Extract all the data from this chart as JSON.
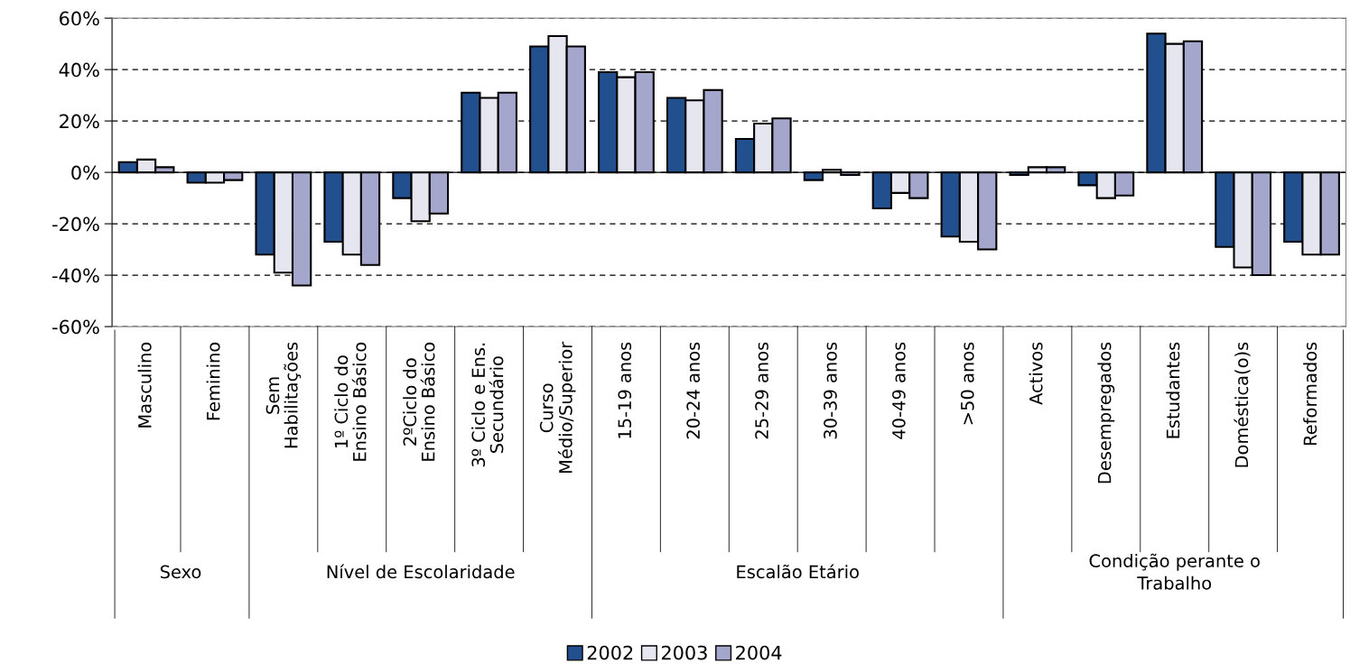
{
  "chart_data": {
    "type": "bar",
    "categories": [
      "Masculino",
      "Feminino",
      "Sem\nHabilitações",
      "1º Ciclo do\nEnsino Básico",
      "2ºCiclo do\nEnsino Básico",
      "3º Ciclo e Ens.\nSecundário",
      "Curso\nMédio/Superior",
      "15-19 anos",
      "20-24 anos",
      "25-29 anos",
      "30-39 anos",
      "40-49 anos",
      ">50 anos",
      "Activos",
      "Desempregados",
      "Estudantes",
      "Doméstica(o)s",
      "Reformados"
    ],
    "series": [
      {
        "name": "2002",
        "color": "#22508f",
        "values": [
          4,
          -4,
          -32,
          -27,
          -10,
          31,
          49,
          39,
          29,
          13,
          -3,
          -14,
          -25,
          -1,
          -5,
          54,
          -29,
          -27
        ]
      },
      {
        "name": "2003",
        "color": "#e6e6f0",
        "values": [
          5,
          -4,
          -39,
          -32,
          -19,
          29,
          53,
          37,
          28,
          19,
          1,
          -8,
          -27,
          2,
          -10,
          50,
          -37,
          -32
        ]
      },
      {
        "name": "2004",
        "color": "#a4a6cc",
        "values": [
          2,
          -3,
          -44,
          -36,
          -16,
          31,
          49,
          39,
          32,
          21,
          -1,
          -10,
          -30,
          2,
          -9,
          51,
          -40,
          -32
        ]
      }
    ],
    "ylim": [
      -60,
      60
    ],
    "yticks": [
      {
        "value": -60,
        "label": "-60%"
      },
      {
        "value": -40,
        "label": "-40%"
      },
      {
        "value": -20,
        "label": "-20%"
      },
      {
        "value": 0,
        "label": "0%"
      },
      {
        "value": 20,
        "label": "20%"
      },
      {
        "value": 40,
        "label": "40%"
      },
      {
        "value": 60,
        "label": "60%"
      }
    ],
    "grid": "y",
    "legend": "bottom",
    "annotations": [
      "Sexo",
      "Nível de Escolaridade",
      "Escalão Etário",
      "Condição perante o\nTrabalho"
    ]
  }
}
